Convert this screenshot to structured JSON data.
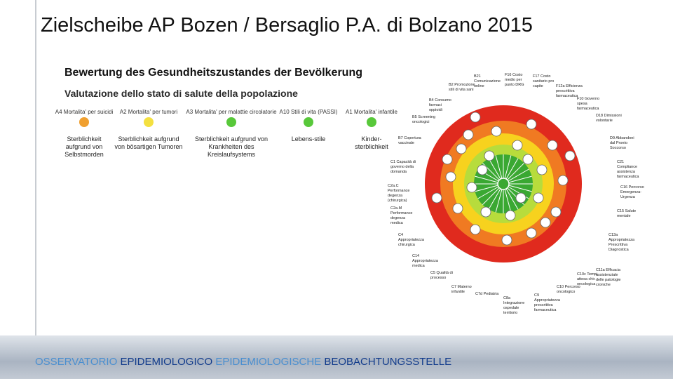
{
  "title": "Zielscheibe AP Bozen / Bersaglio P.A. di Bolzano 2015",
  "section": {
    "heading_de": "Bewertung des Gesundheitszustandes der Bevölkerung",
    "heading_it": "Valutazione dello stato di salute della popolazione",
    "indicators": [
      {
        "label_it": "A4 Mortalita' per suicidi",
        "label_de": "Sterblichkeit aufgrund von Selbstmorden",
        "color": "#f0a030"
      },
      {
        "label_it": "A2 Mortalita' per tumori",
        "label_de": "Sterblichkeit aufgrund von bösartigen Tumoren",
        "color": "#f4e040"
      },
      {
        "label_it": "A3 Mortalita' per malattie circolatorie",
        "label_de": "Sterblichkeit aufgrund von Krankheiten des Kreislaufsystems",
        "color": "#58c83a"
      },
      {
        "label_it": "A10 Stili di vita (PASSI)",
        "label_de": "Lebens-stile",
        "color": "#58c83a"
      },
      {
        "label_it": "A1 Mortalita' infantile",
        "label_de": "Kinder-sterblichkeit",
        "color": "#58c83a"
      }
    ]
  },
  "target_labels": [
    "B21 Comunicazione online",
    "F16 Costo medio per punto DRG",
    "F17 Costo sanitario pro capite",
    "F12a Efficienza prescrittiva farmaceutica",
    "B2 Promozione stili di vita sani",
    "B4 Consumo farmaci oppioidi",
    "B5 Screening oncologici",
    "F10 Governo spesa farmaceutica",
    "D18 Dimissioni volontarie",
    "B7 Copertura vaccinale",
    "D9 Abbandoni dal Pronto Soccorso",
    "C1 Capacità di governo della domanda",
    "C21 Compliance assistenza farmaceutica",
    "C2a.C Performance degenza (chirurgica)",
    "C16 Percorso Emergenza-Urgenza",
    "C2a.M Performance degenza medica",
    "C15 Salute mentale",
    "C4 Appropriatezza chirurgica",
    "C13a Appropriatezza Prescrittiva Diagnostica",
    "C14 Appropriatezza medica",
    "C11a Efficacia assistenziale delle patologie croniche",
    "C5 Qualità di processo",
    "C7 Materno infantile",
    "C7d Pediatria",
    "C8a Integrazione ospedale territorio",
    "C9 Appropriatezza prescrittiva farmaceutica",
    "C10 Percorso oncologico",
    "C10c Tempi attesa chir. oncologica"
  ],
  "footer": [
    "OSSERVATORIO",
    "EPIDEMIOLOGICO",
    "EPIDEMIOLOGISCHE",
    "BEOBACHTUNGSSTELLE"
  ]
}
